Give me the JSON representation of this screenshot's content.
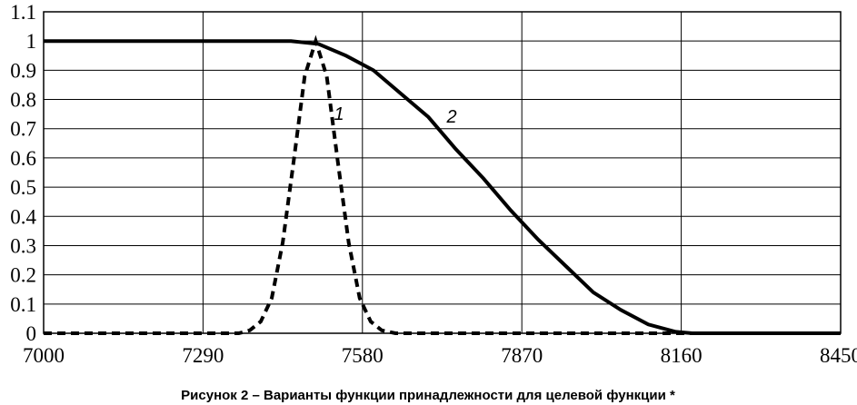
{
  "chart_data": {
    "type": "line",
    "caption": "Рисунок 2 – Варианты функции принадлежности для целевой функции *",
    "xlim": [
      7000,
      8450
    ],
    "xticks": [
      7000,
      7290,
      7580,
      7870,
      8160,
      8450
    ],
    "ylim": [
      0,
      1.1
    ],
    "yticks": [
      0,
      0.1,
      0.2,
      0.3,
      0.4,
      0.5,
      0.6,
      0.7,
      0.8,
      0.9,
      1,
      1.1
    ],
    "grid": true,
    "series": [
      {
        "name": "1",
        "color": "#000000",
        "style": "dashed",
        "x": [
          7000,
          7355,
          7375,
          7395,
          7415,
          7435,
          7455,
          7475,
          7495,
          7515,
          7535,
          7555,
          7575,
          7595,
          7615,
          7640,
          8450
        ],
        "values": [
          0,
          0,
          0.01,
          0.04,
          0.12,
          0.31,
          0.59,
          0.88,
          1,
          0.88,
          0.59,
          0.31,
          0.12,
          0.04,
          0.01,
          0,
          0
        ]
      },
      {
        "name": "2",
        "color": "#000000",
        "style": "solid",
        "x": [
          7000,
          7450,
          7500,
          7550,
          7600,
          7650,
          7700,
          7750,
          7800,
          7850,
          7900,
          7950,
          8000,
          8050,
          8100,
          8150,
          8180,
          8450
        ],
        "values": [
          1,
          1,
          0.99,
          0.95,
          0.9,
          0.82,
          0.74,
          0.63,
          0.53,
          0.42,
          0.32,
          0.23,
          0.14,
          0.08,
          0.03,
          0.005,
          0,
          0
        ]
      }
    ]
  }
}
